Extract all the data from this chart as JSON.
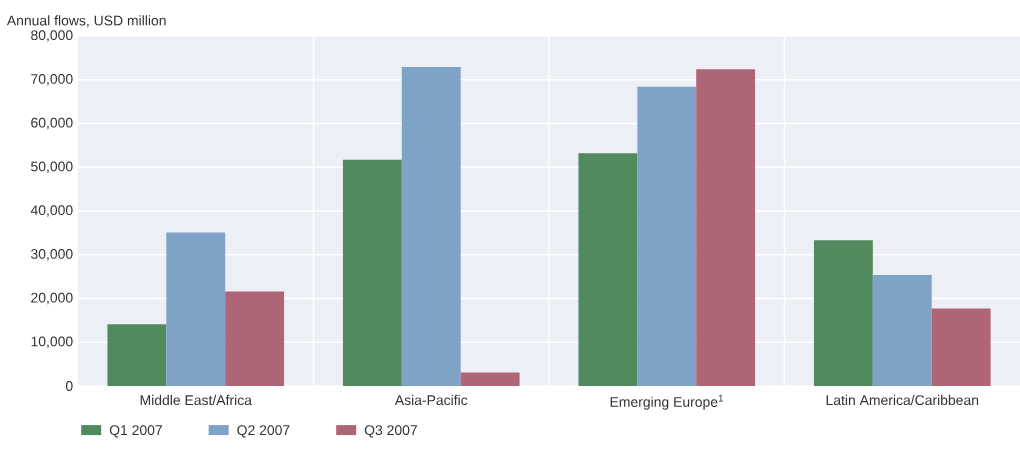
{
  "chart_data": {
    "type": "bar",
    "ylabel": "Annual flows, USD million",
    "categories": [
      "Middle East/Africa",
      "Asia-Pacific",
      "Emerging Europe$^{1}$",
      "Latin America/Caribbean"
    ],
    "series": [
      {
        "name": "Q1 2007",
        "color": "#508a5e",
        "values": [
          14100,
          51700,
          53200,
          33300
        ]
      },
      {
        "name": "Q2 2007",
        "color": "#7fa3c6",
        "values": [
          35100,
          72900,
          68400,
          25400
        ]
      },
      {
        "name": "Q3 2007",
        "color": "#ae6677",
        "values": [
          21600,
          3100,
          72400,
          17700
        ]
      }
    ],
    "ylim": [
      0,
      80000
    ],
    "yticks": [
      0,
      {
        "value": 10000,
        "label": "10,000"
      },
      {
        "value": 20000,
        "label": "20,000"
      },
      {
        "value": 30000,
        "label": "30,000"
      },
      {
        "value": 40000,
        "label": "40,000"
      },
      {
        "value": 50000,
        "label": "50,000"
      },
      {
        "value": 60000,
        "label": "60,000"
      },
      {
        "value": 70000,
        "label": "70,000"
      },
      {
        "value": 80000,
        "label": "80,000"
      }
    ],
    "grid": true,
    "legend": "bottom left"
  }
}
